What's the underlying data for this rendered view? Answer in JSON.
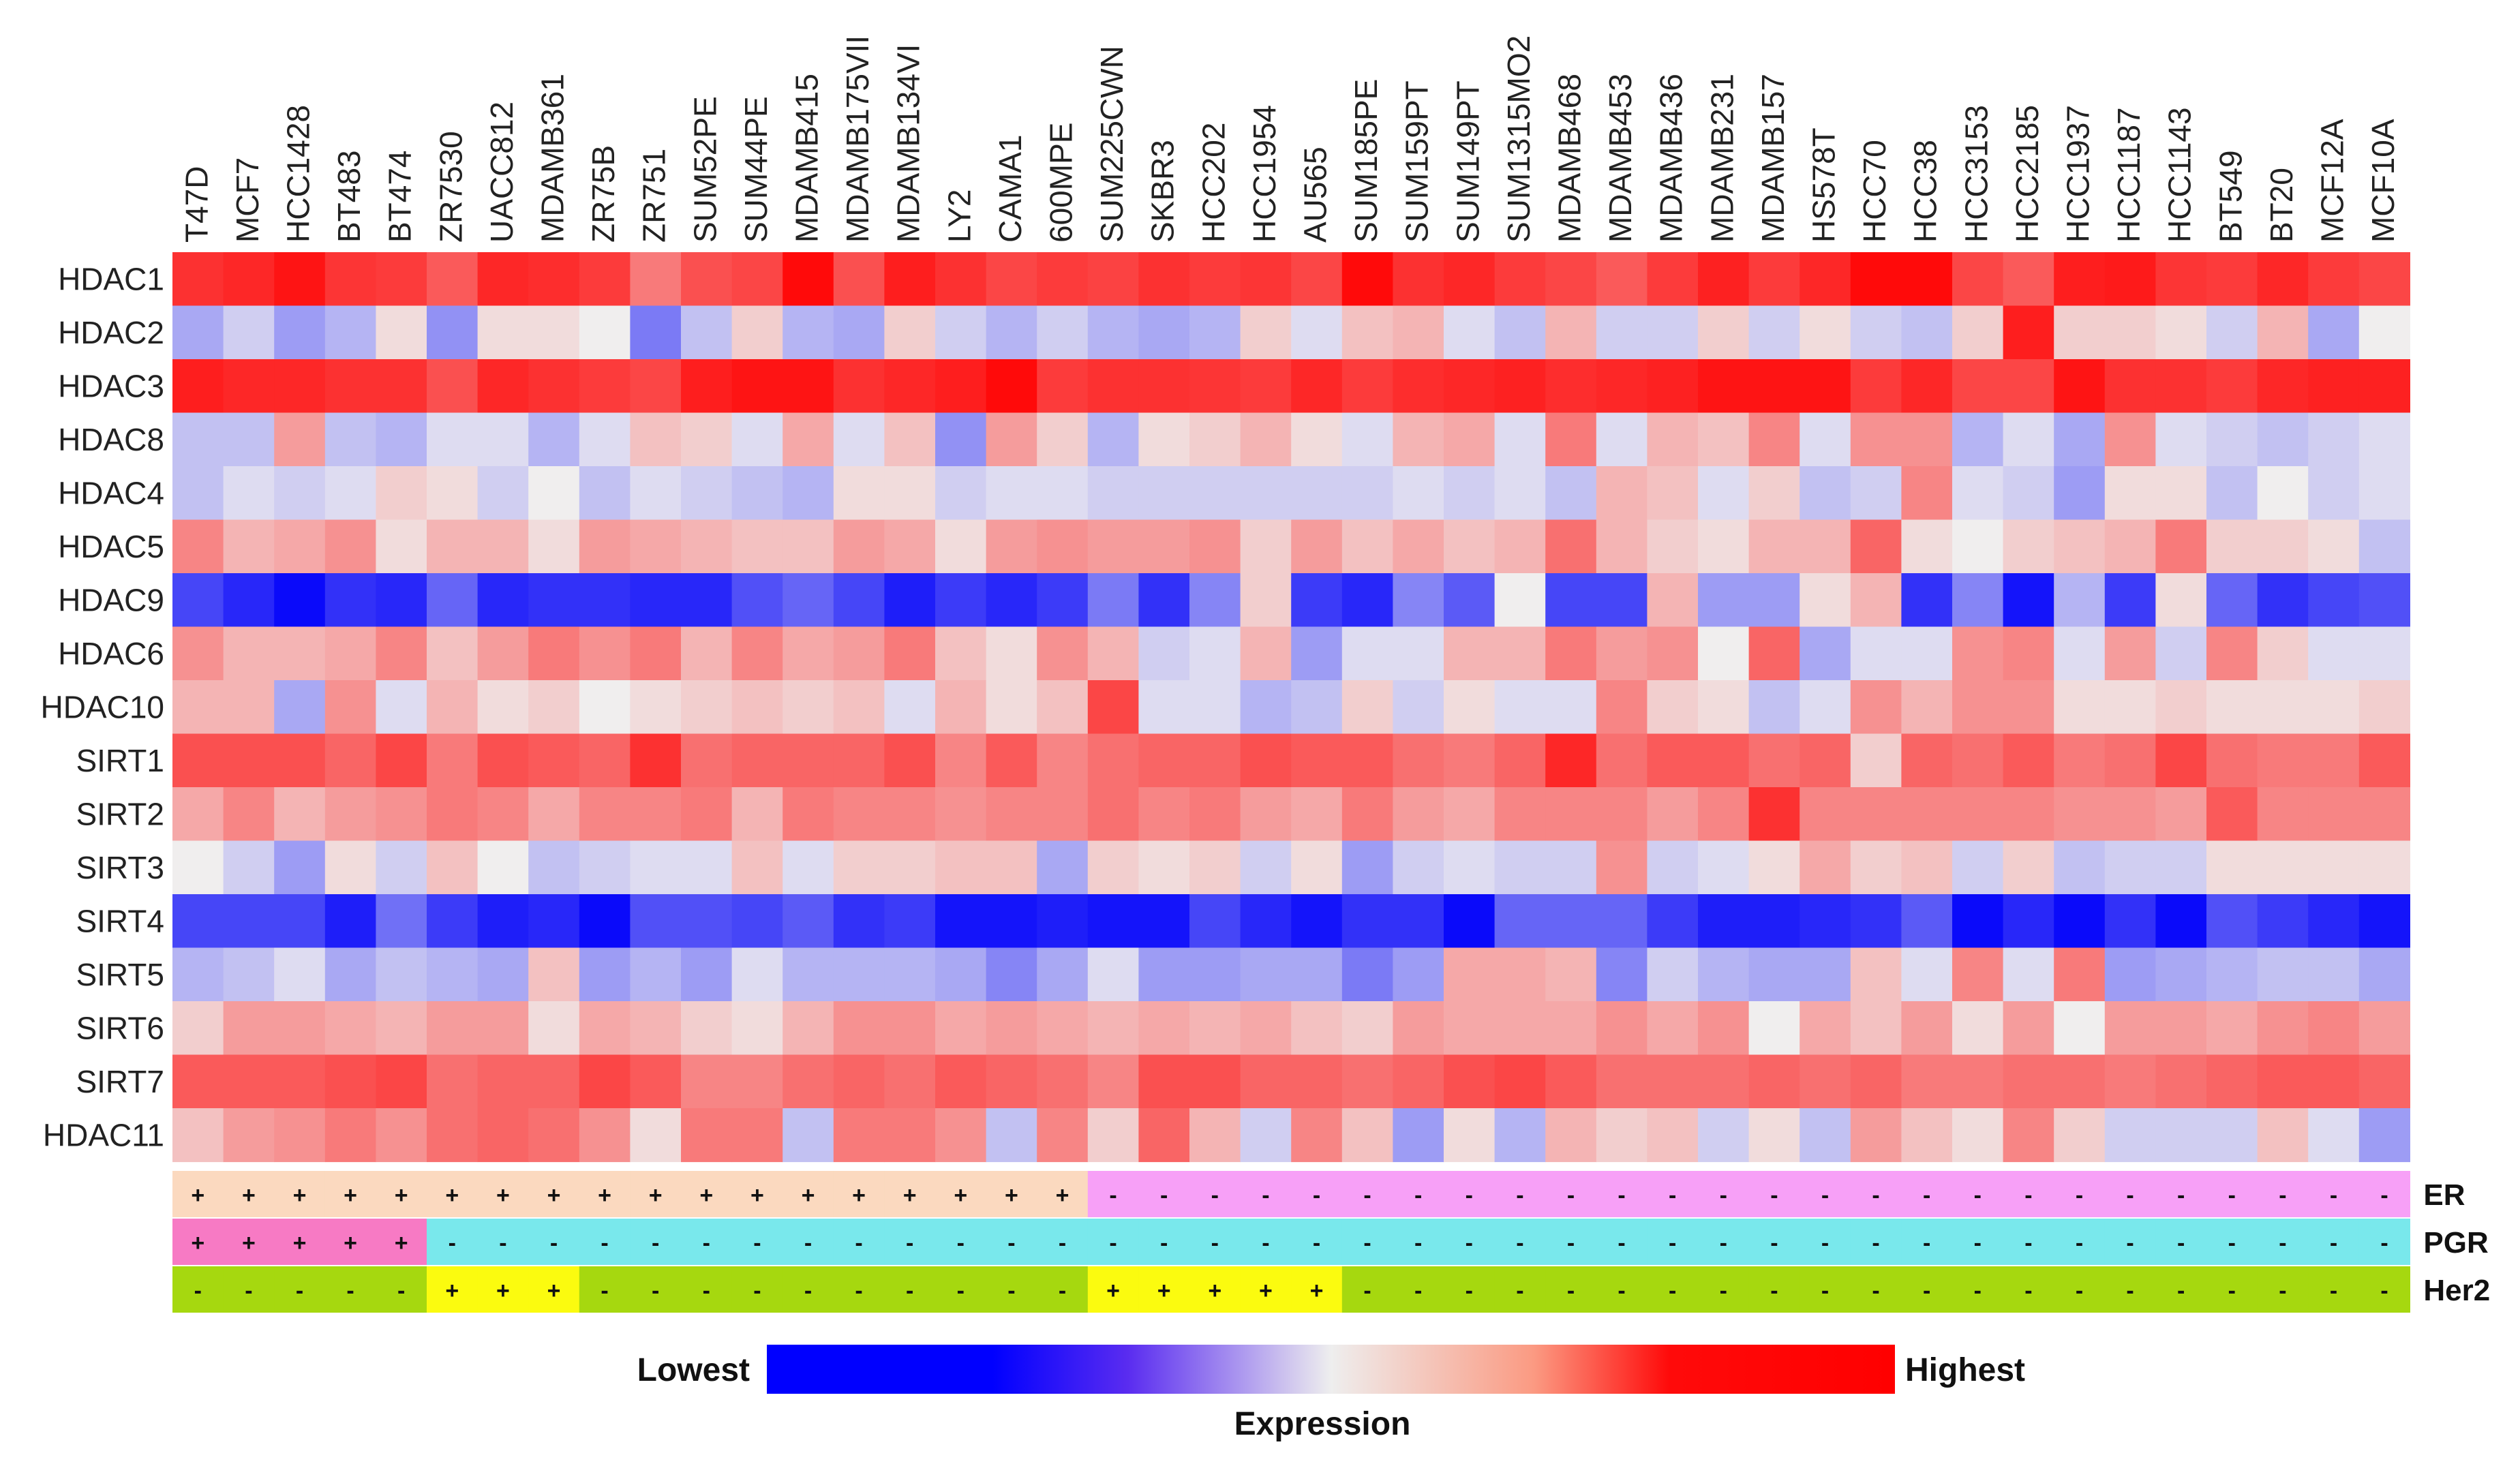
{
  "chart_data": {
    "type": "heatmap",
    "columns": [
      "T47D",
      "MCF7",
      "HCC1428",
      "BT483",
      "BT474",
      "ZR7530",
      "UACC812",
      "MDAMB361",
      "ZR75B",
      "ZR751",
      "SUM52PE",
      "SUM44PE",
      "MDAMB415",
      "MDAMB175VII",
      "MDAMB134VI",
      "LY2",
      "CAMA1",
      "600MPE",
      "SUM225CWN",
      "SKBR3",
      "HCC202",
      "HCC1954",
      "AU565",
      "SUM185PE",
      "SUM159PT",
      "SUM149PT",
      "SUM1315MO2",
      "MDAMB468",
      "MDAMB453",
      "MDAMB436",
      "MDAMB231",
      "MDAMB157",
      "HS578T",
      "HCC70",
      "HCC38",
      "HCC3153",
      "HCC2185",
      "HCC1937",
      "HCC1187",
      "HCC1143",
      "BT549",
      "BT20",
      "MCF12A",
      "MCF10A"
    ],
    "rows": [
      "HDAC1",
      "HDAC2",
      "HDAC3",
      "HDAC8",
      "HDAC4",
      "HDAC5",
      "HDAC9",
      "HDAC6",
      "HDAC10",
      "SIRT1",
      "SIRT2",
      "SIRT3",
      "SIRT4",
      "SIRT5",
      "SIRT6",
      "SIRT7",
      "HDAC11"
    ],
    "scale": "relative expression, -1 = lowest (blue), 0 = neutral (white), 1 = highest (red)",
    "values": [
      [
        0.8,
        0.85,
        0.95,
        0.78,
        0.75,
        0.6,
        0.85,
        0.82,
        0.75,
        0.45,
        0.65,
        0.7,
        1.0,
        0.65,
        0.9,
        0.8,
        0.7,
        0.75,
        0.72,
        0.8,
        0.75,
        0.78,
        0.7,
        1.0,
        0.8,
        0.85,
        0.75,
        0.7,
        0.6,
        0.75,
        0.88,
        0.75,
        0.85,
        1.0,
        1.0,
        0.7,
        0.6,
        0.9,
        0.92,
        0.78,
        0.75,
        0.85,
        0.75,
        0.7
      ],
      [
        -0.25,
        -0.1,
        -0.3,
        -0.2,
        0.05,
        -0.35,
        0.05,
        0.05,
        0.0,
        -0.45,
        -0.15,
        0.1,
        -0.2,
        -0.25,
        0.1,
        -0.1,
        -0.2,
        -0.1,
        -0.2,
        -0.25,
        -0.2,
        0.1,
        -0.05,
        0.15,
        0.2,
        -0.05,
        -0.15,
        0.2,
        -0.1,
        -0.1,
        0.1,
        -0.1,
        0.05,
        -0.1,
        -0.15,
        0.1,
        0.9,
        0.1,
        0.1,
        0.05,
        -0.1,
        0.2,
        -0.25,
        0.0
      ],
      [
        0.9,
        0.85,
        0.85,
        0.8,
        0.8,
        0.65,
        0.85,
        0.8,
        0.75,
        0.7,
        0.9,
        0.95,
        0.95,
        0.8,
        0.85,
        0.9,
        1.0,
        0.75,
        0.8,
        0.8,
        0.78,
        0.75,
        0.85,
        0.75,
        0.82,
        0.85,
        0.88,
        0.82,
        0.85,
        0.88,
        0.95,
        0.95,
        0.95,
        0.75,
        0.85,
        0.7,
        0.7,
        0.95,
        0.8,
        0.8,
        0.75,
        0.85,
        0.88,
        0.88
      ],
      [
        -0.15,
        -0.15,
        0.3,
        -0.15,
        -0.2,
        -0.05,
        -0.05,
        -0.2,
        -0.05,
        0.15,
        0.1,
        -0.05,
        0.25,
        -0.05,
        0.15,
        -0.35,
        0.3,
        0.1,
        -0.2,
        0.05,
        0.1,
        0.2,
        0.05,
        -0.05,
        0.2,
        0.25,
        -0.05,
        0.45,
        -0.05,
        0.2,
        0.15,
        0.4,
        -0.05,
        0.35,
        0.35,
        -0.2,
        -0.05,
        -0.25,
        0.35,
        -0.05,
        -0.1,
        -0.15,
        -0.1,
        -0.05
      ],
      [
        -0.15,
        -0.05,
        -0.1,
        -0.05,
        0.1,
        0.05,
        -0.1,
        0.0,
        -0.15,
        -0.05,
        -0.1,
        -0.15,
        -0.2,
        0.05,
        0.05,
        -0.1,
        -0.05,
        -0.05,
        -0.1,
        -0.1,
        -0.1,
        -0.1,
        -0.1,
        -0.1,
        -0.05,
        -0.1,
        -0.05,
        -0.15,
        0.2,
        0.15,
        -0.05,
        0.1,
        -0.15,
        -0.1,
        0.4,
        -0.05,
        -0.1,
        -0.3,
        0.05,
        0.05,
        -0.15,
        0.0,
        -0.1,
        -0.05
      ],
      [
        0.4,
        0.2,
        0.25,
        0.35,
        0.05,
        0.2,
        0.2,
        0.05,
        0.3,
        0.25,
        0.2,
        0.15,
        0.15,
        0.3,
        0.25,
        0.05,
        0.3,
        0.35,
        0.3,
        0.3,
        0.35,
        0.1,
        0.3,
        0.15,
        0.25,
        0.15,
        0.2,
        0.5,
        0.2,
        0.1,
        0.05,
        0.2,
        0.2,
        0.55,
        0.05,
        0.0,
        0.1,
        0.15,
        0.2,
        0.45,
        0.1,
        0.1,
        0.05,
        -0.15
      ],
      [
        -0.7,
        -0.85,
        -1.0,
        -0.8,
        -0.85,
        -0.55,
        -0.85,
        -0.8,
        -0.8,
        -0.85,
        -0.85,
        -0.65,
        -0.55,
        -0.7,
        -0.9,
        -0.75,
        -0.85,
        -0.75,
        -0.45,
        -0.8,
        -0.4,
        0.1,
        -0.75,
        -0.85,
        -0.4,
        -0.6,
        0.0,
        -0.7,
        -0.7,
        0.2,
        -0.3,
        -0.3,
        0.05,
        0.2,
        -0.8,
        -0.4,
        -0.95,
        -0.2,
        -0.75,
        0.05,
        -0.55,
        -0.8,
        -0.7,
        -0.65
      ],
      [
        0.35,
        0.2,
        0.2,
        0.25,
        0.4,
        0.15,
        0.3,
        0.45,
        0.35,
        0.45,
        0.2,
        0.4,
        0.25,
        0.3,
        0.45,
        0.15,
        0.05,
        0.35,
        0.2,
        -0.1,
        -0.05,
        0.2,
        -0.3,
        -0.05,
        -0.05,
        0.2,
        0.2,
        0.45,
        0.3,
        0.35,
        0.0,
        0.55,
        -0.25,
        -0.05,
        -0.05,
        0.35,
        0.4,
        -0.05,
        0.3,
        -0.1,
        0.4,
        0.1,
        -0.05,
        -0.05
      ],
      [
        0.2,
        0.2,
        -0.25,
        0.35,
        -0.05,
        0.2,
        0.05,
        0.1,
        0.0,
        0.05,
        0.1,
        0.15,
        0.1,
        0.15,
        -0.05,
        0.2,
        0.05,
        0.15,
        0.7,
        -0.05,
        -0.05,
        -0.2,
        -0.15,
        0.1,
        -0.1,
        0.05,
        -0.05,
        -0.05,
        0.4,
        0.1,
        0.05,
        -0.15,
        -0.05,
        0.35,
        0.2,
        0.35,
        0.35,
        0.05,
        0.05,
        0.1,
        0.05,
        0.05,
        0.05,
        0.1
      ],
      [
        0.65,
        0.65,
        0.65,
        0.55,
        0.7,
        0.45,
        0.65,
        0.6,
        0.55,
        0.8,
        0.5,
        0.55,
        0.55,
        0.55,
        0.65,
        0.4,
        0.6,
        0.4,
        0.5,
        0.55,
        0.55,
        0.65,
        0.6,
        0.6,
        0.5,
        0.45,
        0.55,
        0.85,
        0.5,
        0.6,
        0.6,
        0.5,
        0.55,
        0.1,
        0.55,
        0.5,
        0.6,
        0.45,
        0.5,
        0.7,
        0.5,
        0.45,
        0.45,
        0.6
      ],
      [
        0.25,
        0.4,
        0.2,
        0.3,
        0.35,
        0.45,
        0.4,
        0.25,
        0.4,
        0.4,
        0.45,
        0.2,
        0.45,
        0.4,
        0.4,
        0.35,
        0.4,
        0.4,
        0.5,
        0.4,
        0.45,
        0.3,
        0.25,
        0.45,
        0.3,
        0.25,
        0.4,
        0.4,
        0.4,
        0.3,
        0.4,
        0.8,
        0.4,
        0.4,
        0.4,
        0.4,
        0.4,
        0.35,
        0.35,
        0.3,
        0.6,
        0.4,
        0.4,
        0.4
      ],
      [
        0.0,
        -0.1,
        -0.3,
        0.05,
        -0.1,
        0.15,
        0.0,
        -0.15,
        -0.1,
        -0.05,
        -0.05,
        0.15,
        -0.05,
        0.1,
        0.1,
        0.15,
        0.15,
        -0.25,
        0.1,
        0.05,
        0.1,
        -0.1,
        0.05,
        -0.3,
        -0.1,
        -0.05,
        -0.1,
        -0.1,
        0.35,
        -0.1,
        -0.05,
        0.05,
        0.25,
        0.1,
        0.15,
        -0.1,
        0.1,
        -0.15,
        -0.1,
        -0.1,
        0.05,
        0.05,
        0.05,
        0.05
      ],
      [
        -0.7,
        -0.7,
        -0.7,
        -0.9,
        -0.5,
        -0.75,
        -0.9,
        -0.85,
        -1.0,
        -0.65,
        -0.65,
        -0.7,
        -0.6,
        -0.8,
        -0.75,
        -0.95,
        -0.95,
        -0.9,
        -0.95,
        -0.95,
        -0.7,
        -0.85,
        -0.95,
        -0.8,
        -0.8,
        -1.0,
        -0.55,
        -0.55,
        -0.55,
        -0.75,
        -0.9,
        -0.9,
        -0.85,
        -0.8,
        -0.6,
        -1.0,
        -0.85,
        -1.0,
        -0.8,
        -1.0,
        -0.65,
        -0.75,
        -0.85,
        -0.95
      ],
      [
        -0.2,
        -0.15,
        -0.05,
        -0.25,
        -0.15,
        -0.2,
        -0.25,
        0.15,
        -0.3,
        -0.2,
        -0.3,
        -0.05,
        -0.2,
        -0.2,
        -0.2,
        -0.25,
        -0.4,
        -0.25,
        -0.05,
        -0.3,
        -0.3,
        -0.25,
        -0.25,
        -0.45,
        -0.3,
        0.25,
        0.25,
        0.2,
        -0.4,
        -0.1,
        -0.2,
        -0.25,
        -0.25,
        0.15,
        -0.05,
        0.4,
        -0.05,
        0.45,
        -0.3,
        -0.25,
        -0.2,
        -0.15,
        -0.15,
        -0.25
      ],
      [
        0.1,
        0.3,
        0.3,
        0.25,
        0.2,
        0.3,
        0.3,
        0.05,
        0.25,
        0.2,
        0.1,
        0.05,
        0.2,
        0.35,
        0.35,
        0.25,
        0.3,
        0.25,
        0.2,
        0.25,
        0.2,
        0.25,
        0.15,
        0.1,
        0.3,
        0.25,
        0.25,
        0.25,
        0.35,
        0.25,
        0.35,
        0.0,
        0.25,
        0.15,
        0.3,
        0.05,
        0.3,
        0.0,
        0.3,
        0.3,
        0.25,
        0.35,
        0.4,
        0.3
      ],
      [
        0.6,
        0.6,
        0.6,
        0.65,
        0.7,
        0.5,
        0.55,
        0.55,
        0.7,
        0.6,
        0.4,
        0.4,
        0.5,
        0.55,
        0.5,
        0.6,
        0.55,
        0.5,
        0.4,
        0.65,
        0.65,
        0.55,
        0.55,
        0.5,
        0.55,
        0.65,
        0.7,
        0.6,
        0.5,
        0.5,
        0.5,
        0.55,
        0.5,
        0.55,
        0.45,
        0.45,
        0.5,
        0.5,
        0.45,
        0.5,
        0.55,
        0.6,
        0.6,
        0.55
      ],
      [
        0.15,
        0.3,
        0.35,
        0.45,
        0.35,
        0.5,
        0.55,
        0.5,
        0.35,
        0.05,
        0.45,
        0.45,
        -0.15,
        0.45,
        0.45,
        0.35,
        -0.15,
        0.4,
        0.1,
        0.55,
        0.2,
        -0.1,
        0.4,
        0.15,
        -0.3,
        0.05,
        -0.2,
        0.2,
        0.1,
        0.15,
        -0.1,
        0.05,
        -0.15,
        0.3,
        0.15,
        0.05,
        0.4,
        0.1,
        -0.1,
        -0.1,
        -0.1,
        0.15,
        -0.05,
        -0.3
      ]
    ],
    "annotations": [
      {
        "name": "ER",
        "signs": [
          "+",
          "+",
          "+",
          "+",
          "+",
          "+",
          "+",
          "+",
          "+",
          "+",
          "+",
          "+",
          "+",
          "+",
          "+",
          "+",
          "+",
          "+",
          "-",
          "-",
          "-",
          "-",
          "-",
          "-",
          "-",
          "-",
          "-",
          "-",
          "-",
          "-",
          "-",
          "-",
          "-",
          "-",
          "-",
          "-",
          "-",
          "-",
          "-",
          "-",
          "-",
          "-",
          "-",
          "-"
        ],
        "color_positive": "#fbd9bf",
        "color_negative": "#f7a0f7"
      },
      {
        "name": "PGR",
        "signs": [
          "+",
          "+",
          "+",
          "+",
          "+",
          "-",
          "-",
          "-",
          "-",
          "-",
          "-",
          "-",
          "-",
          "-",
          "-",
          "-",
          "-",
          "-",
          "-",
          "-",
          "-",
          "-",
          "-",
          "-",
          "-",
          "-",
          "-",
          "-",
          "-",
          "-",
          "-",
          "-",
          "-",
          "-",
          "-",
          "-",
          "-",
          "-",
          "-",
          "-",
          "-",
          "-",
          "-",
          "-"
        ],
        "color_positive": "#f77ac4",
        "color_negative": "#79e8ec"
      },
      {
        "name": "Her2",
        "signs": [
          "-",
          "-",
          "-",
          "-",
          "-",
          "+",
          "+",
          "+",
          "-",
          "-",
          "-",
          "-",
          "-",
          "-",
          "-",
          "-",
          "-",
          "-",
          "+",
          "+",
          "+",
          "+",
          "+",
          "-",
          "-",
          "-",
          "-",
          "-",
          "-",
          "-",
          "-",
          "-",
          "-",
          "-",
          "-",
          "-",
          "-",
          "-",
          "-",
          "-",
          "-",
          "-",
          "-",
          "-"
        ],
        "color_positive": "#fbfb0f",
        "color_negative": "#a6d80f"
      }
    ],
    "legend": {
      "low_label": "Lowest",
      "high_label": "Highest",
      "title": "Expression",
      "colors": [
        "#0000ff",
        "#ffffff",
        "#ff0000"
      ]
    }
  }
}
